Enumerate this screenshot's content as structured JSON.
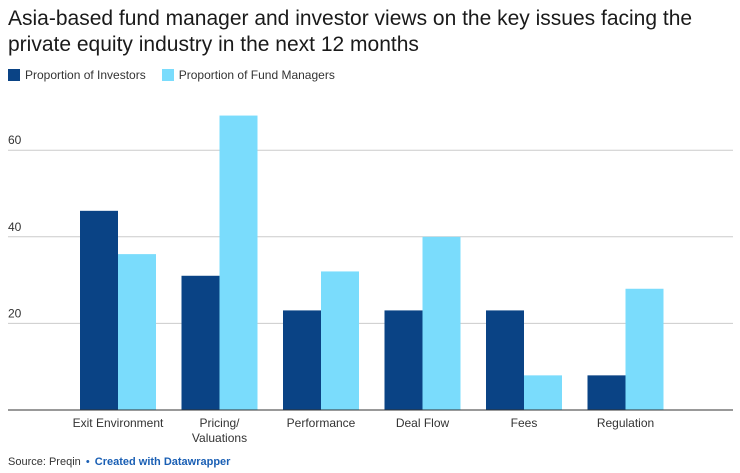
{
  "title": "Asia-based fund manager and investor views on the key issues facing the private equity industry in the next 12 months",
  "legend": [
    {
      "label": "Proportion of Investors",
      "color": "#0a4385"
    },
    {
      "label": "Proportion of Fund Managers",
      "color": "#7adcfc"
    }
  ],
  "footer": {
    "source": "Source: Preqin",
    "separator": "•",
    "credit": "Created with Datawrapper"
  },
  "chart_data": {
    "type": "bar",
    "categories": [
      [
        "Exit Environment"
      ],
      [
        "Pricing/",
        "Valuations"
      ],
      [
        "Performance"
      ],
      [
        "Deal Flow"
      ],
      [
        "Fees"
      ],
      [
        "Regulation"
      ]
    ],
    "series": [
      {
        "name": "Proportion of Investors",
        "color": "#0a4385",
        "values": [
          46,
          31,
          23,
          23,
          23,
          8
        ]
      },
      {
        "name": "Proportion of Fund Managers",
        "color": "#7adcfc",
        "values": [
          36,
          68,
          32,
          40,
          8,
          28
        ]
      }
    ],
    "yticks": [
      20,
      40,
      60
    ],
    "ylim": [
      0,
      74
    ],
    "grid": true,
    "legend_position": "top-left",
    "xlabel": "",
    "ylabel": ""
  }
}
